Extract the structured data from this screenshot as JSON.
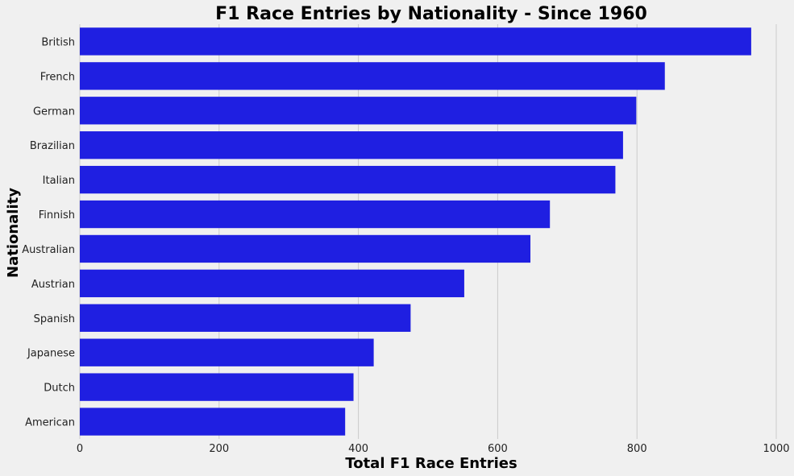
{
  "chart_data": {
    "type": "bar",
    "orientation": "horizontal",
    "title": "F1 Race Entries by Nationality - Since 1960",
    "xlabel": "Total F1 Race Entries",
    "ylabel": "Nationality",
    "categories": [
      "British",
      "French",
      "German",
      "Brazilian",
      "Italian",
      "Finnish",
      "Australian",
      "Austrian",
      "Spanish",
      "Japanese",
      "Dutch",
      "American"
    ],
    "values": [
      964,
      840,
      799,
      780,
      769,
      675,
      647,
      552,
      475,
      422,
      393,
      381
    ],
    "xlim": [
      0,
      1000
    ],
    "xticks": [
      0,
      200,
      400,
      600,
      800,
      1000
    ],
    "grid": true,
    "bar_color": "#1f1fe1",
    "background": "#f0f0f0"
  }
}
